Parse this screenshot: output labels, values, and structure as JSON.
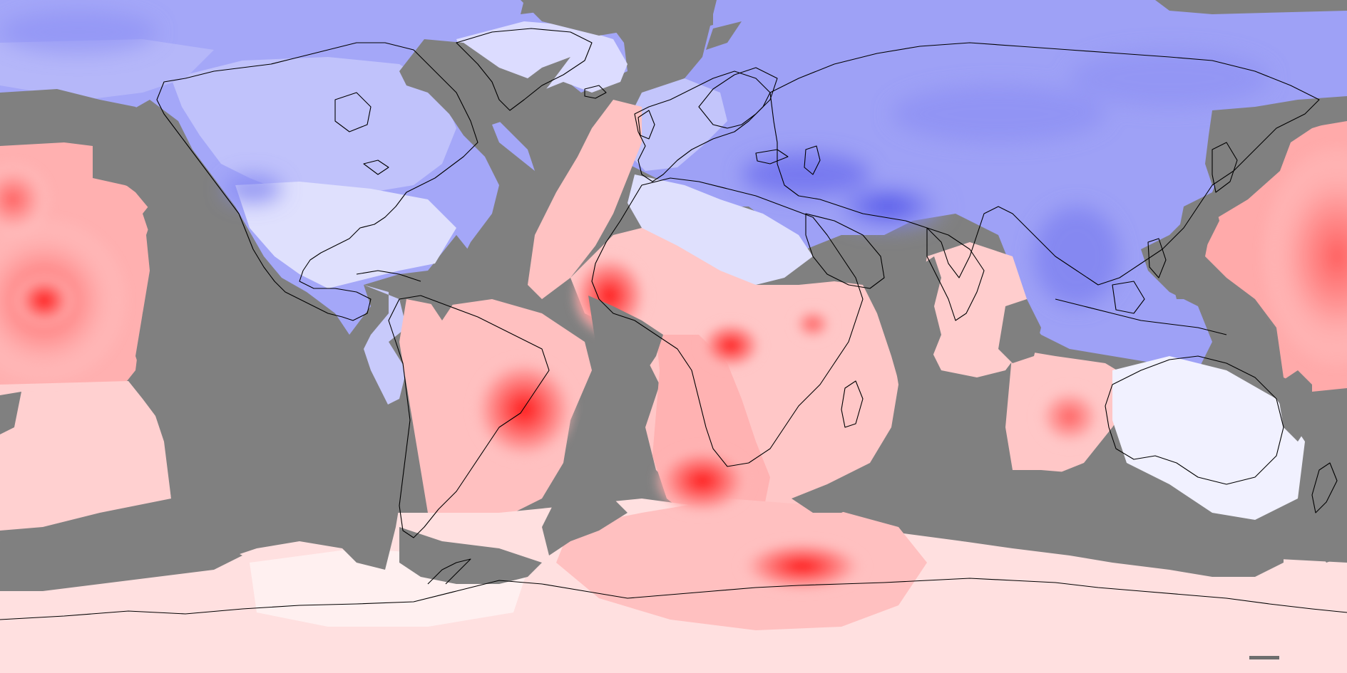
{
  "map": {
    "projection": "equirectangular",
    "extent": {
      "lon": [
        -180,
        180
      ],
      "lat": [
        -90,
        90
      ]
    },
    "colors": {
      "no_data": "#808080",
      "background_cold": "#a6a9f8",
      "background_warm": "#ffe9ea",
      "coastline": "#000000"
    },
    "palette": {
      "cold": [
        "#f2f2ff",
        "#dfe0fd",
        "#c9cbfb",
        "#b3b6f9",
        "#9ea1f6",
        "#8588f1",
        "#6a6df0",
        "#4a4ee8"
      ],
      "warm": [
        "#fff3f3",
        "#ffe1e1",
        "#ffcdcd",
        "#ffb5b5",
        "#ff9d9d",
        "#ff8484",
        "#ff6868",
        "#ff4040",
        "#ff1a1a"
      ]
    }
  }
}
